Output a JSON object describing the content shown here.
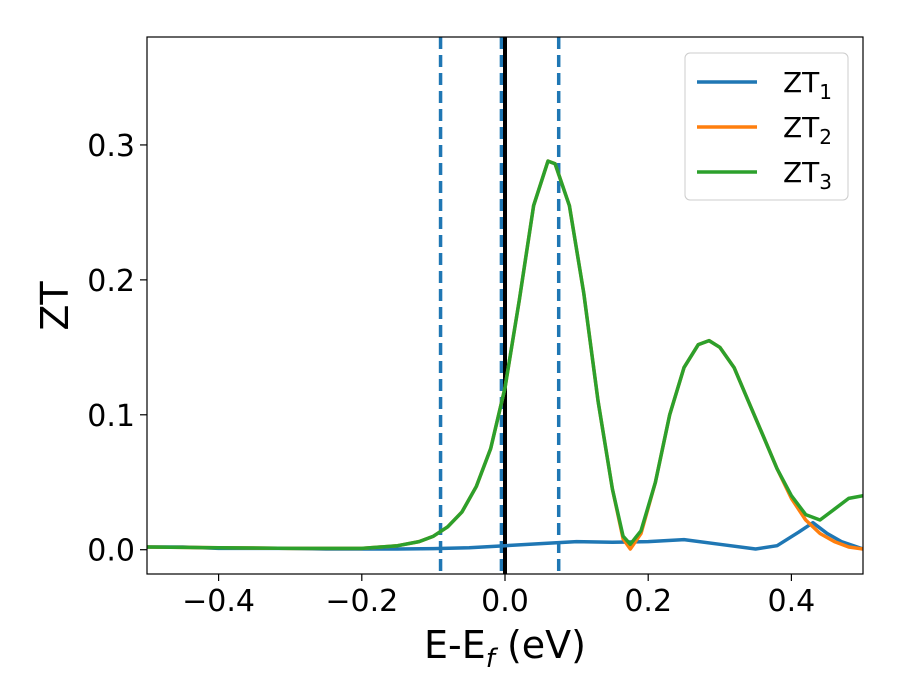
{
  "chart_data": {
    "type": "line",
    "xlabel": {
      "main": "E-E",
      "sub": "f",
      "suffix": " (eV)"
    },
    "ylabel": "ZT",
    "xlim": [
      -0.5,
      0.5
    ],
    "ylim": [
      -0.018,
      0.38
    ],
    "xticks": [
      -0.4,
      -0.2,
      0.0,
      0.2,
      0.4
    ],
    "xtick_labels": [
      "−0.4",
      "−0.2",
      "0.0",
      "0.2",
      "0.4"
    ],
    "yticks": [
      0.0,
      0.1,
      0.2,
      0.3
    ],
    "ytick_labels": [
      "0.0",
      "0.1",
      "0.2",
      "0.3"
    ],
    "grid": false,
    "legend_position": "top-right",
    "vlines": [
      {
        "x": -0.09,
        "style": "dashed",
        "color": "#1f77b4"
      },
      {
        "x": -0.005,
        "style": "dashed",
        "color": "#1f77b4"
      },
      {
        "x": 0.075,
        "style": "dashed",
        "color": "#1f77b4"
      },
      {
        "x": 0.0,
        "style": "solid",
        "color": "#000000"
      }
    ],
    "series": [
      {
        "name": "ZT",
        "sub": "1",
        "color": "#1f77b4",
        "points": [
          [
            -0.5,
            0.002
          ],
          [
            -0.45,
            0.002
          ],
          [
            -0.4,
            0.001
          ],
          [
            -0.35,
            0.001
          ],
          [
            -0.3,
            0.001
          ],
          [
            -0.25,
            0.0005
          ],
          [
            -0.2,
            0.0005
          ],
          [
            -0.15,
            0.0005
          ],
          [
            -0.1,
            0.0008
          ],
          [
            -0.05,
            0.0015
          ],
          [
            0.0,
            0.003
          ],
          [
            0.05,
            0.0045
          ],
          [
            0.1,
            0.006
          ],
          [
            0.15,
            0.0055
          ],
          [
            0.2,
            0.006
          ],
          [
            0.25,
            0.0075
          ],
          [
            0.3,
            0.004
          ],
          [
            0.35,
            0.0005
          ],
          [
            0.38,
            0.003
          ],
          [
            0.41,
            0.013
          ],
          [
            0.43,
            0.02
          ],
          [
            0.45,
            0.012
          ],
          [
            0.47,
            0.006
          ],
          [
            0.5,
            0.0005
          ]
        ]
      },
      {
        "name": "ZT",
        "sub": "2",
        "color": "#ff7f0e",
        "points": [
          [
            -0.5,
            0.002
          ],
          [
            -0.4,
            0.0015
          ],
          [
            -0.3,
            0.001
          ],
          [
            -0.2,
            0.001
          ],
          [
            -0.15,
            0.003
          ],
          [
            -0.12,
            0.006
          ],
          [
            -0.1,
            0.01
          ],
          [
            -0.08,
            0.017
          ],
          [
            -0.06,
            0.028
          ],
          [
            -0.04,
            0.047
          ],
          [
            -0.02,
            0.075
          ],
          [
            0.0,
            0.12
          ],
          [
            0.02,
            0.185
          ],
          [
            0.04,
            0.255
          ],
          [
            0.06,
            0.288
          ],
          [
            0.07,
            0.286
          ],
          [
            0.09,
            0.255
          ],
          [
            0.11,
            0.19
          ],
          [
            0.13,
            0.11
          ],
          [
            0.15,
            0.045
          ],
          [
            0.165,
            0.008
          ],
          [
            0.175,
            0.0005
          ],
          [
            0.19,
            0.012
          ],
          [
            0.21,
            0.05
          ],
          [
            0.23,
            0.1
          ],
          [
            0.25,
            0.135
          ],
          [
            0.27,
            0.152
          ],
          [
            0.285,
            0.155
          ],
          [
            0.3,
            0.15
          ],
          [
            0.32,
            0.135
          ],
          [
            0.34,
            0.11
          ],
          [
            0.36,
            0.085
          ],
          [
            0.38,
            0.06
          ],
          [
            0.4,
            0.038
          ],
          [
            0.42,
            0.022
          ],
          [
            0.44,
            0.012
          ],
          [
            0.46,
            0.006
          ],
          [
            0.48,
            0.002
          ],
          [
            0.5,
            0.0005
          ]
        ]
      },
      {
        "name": "ZT",
        "sub": "3",
        "color": "#2ca02c",
        "points": [
          [
            -0.5,
            0.002
          ],
          [
            -0.4,
            0.0015
          ],
          [
            -0.3,
            0.001
          ],
          [
            -0.2,
            0.001
          ],
          [
            -0.15,
            0.003
          ],
          [
            -0.12,
            0.006
          ],
          [
            -0.1,
            0.01
          ],
          [
            -0.08,
            0.017
          ],
          [
            -0.06,
            0.028
          ],
          [
            -0.04,
            0.047
          ],
          [
            -0.02,
            0.075
          ],
          [
            0.0,
            0.12
          ],
          [
            0.02,
            0.185
          ],
          [
            0.04,
            0.255
          ],
          [
            0.06,
            0.288
          ],
          [
            0.07,
            0.286
          ],
          [
            0.09,
            0.255
          ],
          [
            0.11,
            0.19
          ],
          [
            0.13,
            0.11
          ],
          [
            0.15,
            0.045
          ],
          [
            0.165,
            0.01
          ],
          [
            0.175,
            0.004
          ],
          [
            0.19,
            0.014
          ],
          [
            0.21,
            0.05
          ],
          [
            0.23,
            0.1
          ],
          [
            0.25,
            0.135
          ],
          [
            0.27,
            0.152
          ],
          [
            0.285,
            0.155
          ],
          [
            0.3,
            0.15
          ],
          [
            0.32,
            0.135
          ],
          [
            0.34,
            0.11
          ],
          [
            0.36,
            0.085
          ],
          [
            0.38,
            0.06
          ],
          [
            0.4,
            0.04
          ],
          [
            0.42,
            0.026
          ],
          [
            0.44,
            0.022
          ],
          [
            0.46,
            0.03
          ],
          [
            0.48,
            0.038
          ],
          [
            0.5,
            0.04
          ]
        ]
      }
    ]
  }
}
